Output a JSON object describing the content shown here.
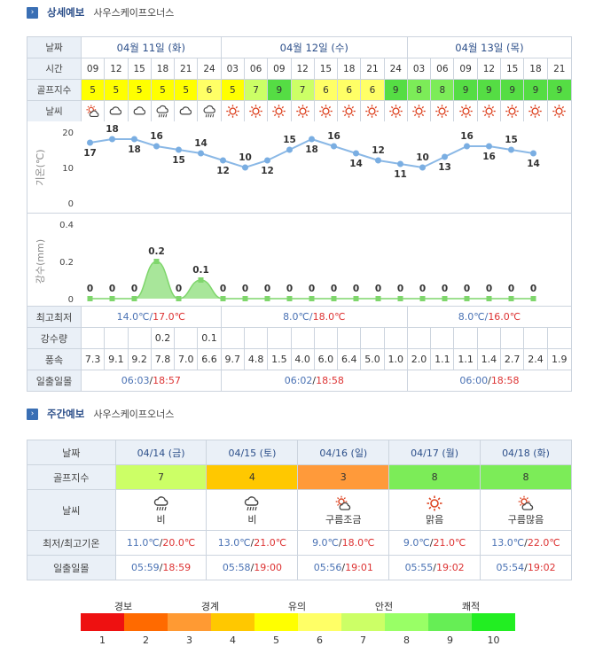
{
  "detail": {
    "title": "상세예보",
    "course": "사우스케이프오너스"
  },
  "labels": {
    "date": "날짜",
    "time": "시간",
    "golf": "골프지수",
    "weather": "날씨",
    "temp_axis": "기온(℃)",
    "rain_axis": "강수(mm)",
    "hilo": "최고최저",
    "rain": "강수량",
    "wind": "풍속",
    "sun": "일출일몰"
  },
  "days": [
    "04월 11일 (화)",
    "04월 12일 (수)",
    "04월 13일 (목)"
  ],
  "hours": [
    "09",
    "12",
    "15",
    "18",
    "21",
    "24",
    "03",
    "06",
    "09",
    "12",
    "15",
    "18",
    "21",
    "24",
    "03",
    "06",
    "09",
    "12",
    "15",
    "18",
    "21"
  ],
  "golf": [
    "5",
    "5",
    "5",
    "5",
    "5",
    "6",
    "5",
    "7",
    "9",
    "7",
    "6",
    "6",
    "6",
    "9",
    "8",
    "8",
    "9",
    "9",
    "9",
    "9",
    "9"
  ],
  "weather_icons": [
    "sun-cloud-icon",
    "cloud-icon",
    "cloud-icon",
    "rain-cloud-icon",
    "cloud-icon",
    "rain-cloud-icon",
    "sun-icon",
    "sun-icon",
    "sun-icon",
    "sun-icon",
    "sun-icon",
    "sun-icon",
    "sun-icon",
    "sun-icon",
    "sun-icon",
    "sun-icon",
    "sun-icon",
    "sun-icon",
    "sun-icon",
    "sun-icon",
    "sun-icon"
  ],
  "chart_data": [
    {
      "type": "line",
      "x": [
        "09",
        "12",
        "15",
        "18",
        "21",
        "24",
        "03",
        "06",
        "09",
        "12",
        "15",
        "18",
        "21",
        "24",
        "03",
        "06",
        "09",
        "12",
        "15",
        "18",
        "21"
      ],
      "values": [
        17,
        18,
        18,
        16,
        15,
        14,
        12,
        10,
        12,
        15,
        18,
        16,
        14,
        12,
        11,
        10,
        13,
        16,
        16,
        15,
        14
      ],
      "ylabel": "기온(℃)",
      "ylim": [
        0,
        20
      ],
      "yticks": [
        "20",
        "10",
        "0"
      ]
    },
    {
      "type": "area",
      "x": [
        "09",
        "12",
        "15",
        "18",
        "21",
        "24",
        "03",
        "06",
        "09",
        "12",
        "15",
        "18",
        "21",
        "24",
        "03",
        "06",
        "09",
        "12",
        "15",
        "18",
        "21"
      ],
      "values": [
        0,
        0,
        0,
        0.2,
        0,
        0.1,
        0,
        0,
        0,
        0,
        0,
        0,
        0,
        0,
        0,
        0,
        0,
        0,
        0,
        0,
        0
      ],
      "labels": [
        "0",
        "0",
        "0",
        "0.2",
        "0",
        "0.1",
        "0",
        "0",
        "0",
        "0",
        "0",
        "0",
        "0",
        "0",
        "0",
        "0",
        "0",
        "0",
        "0",
        "0",
        "0"
      ],
      "ylabel": "강수(mm)",
      "ylim": [
        0,
        0.4
      ],
      "yticks": [
        "0.4",
        "0.2",
        "0"
      ]
    }
  ],
  "hilo": [
    {
      "lo": "14.0℃",
      "hi": "17.0℃"
    },
    {
      "lo": "8.0℃",
      "hi": "18.0℃"
    },
    {
      "lo": "8.0℃",
      "hi": "16.0℃"
    }
  ],
  "rain": [
    "",
    "",
    "",
    "0.2",
    "",
    "0.1",
    "",
    "",
    "",
    "",
    "",
    "",
    "",
    "",
    "",
    "",
    "",
    "",
    "",
    "",
    ""
  ],
  "wind": [
    "7.3",
    "9.1",
    "9.2",
    "7.8",
    "7.0",
    "6.6",
    "9.7",
    "4.8",
    "1.5",
    "4.0",
    "6.0",
    "6.4",
    "5.0",
    "1.0",
    "2.0",
    "1.1",
    "1.1",
    "1.4",
    "2.7",
    "2.4",
    "1.9"
  ],
  "sun": [
    {
      "rise": "06:03",
      "set": "18:57"
    },
    {
      "rise": "06:02",
      "set": "18:58"
    },
    {
      "rise": "06:00",
      "set": "18:58"
    }
  ],
  "weekly": {
    "title": "주간예보",
    "course": "사우스케이프오너스",
    "labels": {
      "date": "날짜",
      "golf": "골프지수",
      "weather": "날씨",
      "temp": "최저/최고기온",
      "sun": "일출일몰"
    },
    "days": [
      {
        "date": "04/14 (금)",
        "golf": "7",
        "icon": "rain-cloud-icon",
        "weather": "비",
        "lo": "11.0℃",
        "hi": "20.0℃",
        "rise": "05:59",
        "set": "18:59"
      },
      {
        "date": "04/15 (토)",
        "golf": "4",
        "icon": "rain-cloud-icon",
        "weather": "비",
        "lo": "13.0℃",
        "hi": "21.0℃",
        "rise": "05:58",
        "set": "19:00"
      },
      {
        "date": "04/16 (일)",
        "golf": "3",
        "icon": "sun-cloud-icon",
        "weather": "구름조금",
        "lo": "9.0℃",
        "hi": "18.0℃",
        "rise": "05:56",
        "set": "19:01"
      },
      {
        "date": "04/17 (월)",
        "golf": "8",
        "icon": "sun-icon",
        "weather": "맑음",
        "lo": "9.0℃",
        "hi": "21.0℃",
        "rise": "05:55",
        "set": "19:02"
      },
      {
        "date": "04/18 (화)",
        "golf": "8",
        "icon": "sun-cloud-icon",
        "weather": "구름많음",
        "lo": "13.0℃",
        "hi": "22.0℃",
        "rise": "05:54",
        "set": "19:02"
      }
    ]
  },
  "legend": {
    "categories": [
      "경보",
      "경계",
      "유의",
      "안전",
      "쾌적"
    ],
    "numbers": [
      "1",
      "2",
      "3",
      "4",
      "5",
      "6",
      "7",
      "8",
      "9",
      "10"
    ],
    "colors": [
      "#ee1111",
      "#ff6a00",
      "#ff9a33",
      "#ffc800",
      "#ffff00",
      "#ffff66",
      "#ccff66",
      "#99ff66",
      "#66ee55",
      "#22ee22"
    ]
  },
  "golf_colors": {
    "3": "#ff9a3a",
    "4": "#ffc800",
    "5": "#ffff00",
    "6": "#ffff66",
    "7": "#ccff66",
    "8": "#7cec58",
    "9": "#55dd44"
  }
}
